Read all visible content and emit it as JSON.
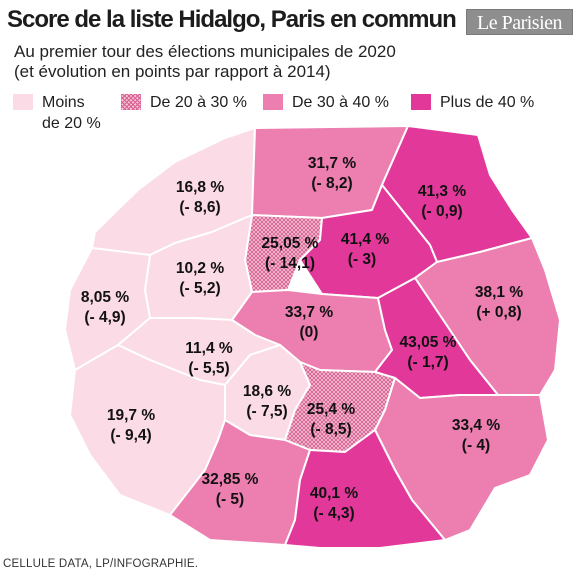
{
  "header": {
    "title": "Score de la liste Hidalgo, Paris en commun",
    "logo": "Le Parisien",
    "subtitle_line1": "Au premier tour des élections municipales de 2020",
    "subtitle_line2": "(et évolution en points par rapport à 2014)"
  },
  "legend": [
    {
      "label_line1": "Moins",
      "label_line2": "de 20 %",
      "color": "#fadbe6"
    },
    {
      "label_line1": "De 20 à 30 %",
      "label_line2": "",
      "color": "#f6c3d5"
    },
    {
      "label_line1": "De 30 à 40 %",
      "label_line2": "",
      "color": "#ec7eb0"
    },
    {
      "label_line1": "Plus de 40 %",
      "label_line2": "",
      "color": "#e1389a"
    }
  ],
  "districts": [
    {
      "score": "16,8 %",
      "change": "(- 8,6)",
      "class": "moins de 20 %"
    },
    {
      "score": "31,7 %",
      "change": "(- 8,2)",
      "class": "de 30 à 40 %"
    },
    {
      "score": "41,3 %",
      "change": "(- 0,9)",
      "class": "plus de 40 %"
    },
    {
      "score": "25,05 %",
      "change": "(- 14,1)",
      "class": "de 20 à 30 %"
    },
    {
      "score": "41,4 %",
      "change": "(- 3)",
      "class": "plus de 40 %"
    },
    {
      "score": "10,2 %",
      "change": "(- 5,2)",
      "class": "moins de 20 %"
    },
    {
      "score": "8,05 %",
      "change": "(- 4,9)",
      "class": "moins de 20 %"
    },
    {
      "score": "38,1 %",
      "change": "(+ 0,8)",
      "class": "de 30 à 40 %"
    },
    {
      "score": "33,7 %",
      "change": "(0)",
      "class": "de 30 à 40 %"
    },
    {
      "score": "43,05 %",
      "change": "(- 1,7)",
      "class": "plus de 40 %"
    },
    {
      "score": "11,4 %",
      "change": "(- 5,5)",
      "class": "moins de 20 %"
    },
    {
      "score": "18,6 %",
      "change": "(- 7,5)",
      "class": "moins de 20 %"
    },
    {
      "score": "25,4 %",
      "change": "(- 8,5)",
      "class": "de 20 à 30 %"
    },
    {
      "score": "19,7 %",
      "change": "(- 9,4)",
      "class": "moins de 20 %"
    },
    {
      "score": "33,4 %",
      "change": "(- 4)",
      "class": "de 30 à 40 %"
    },
    {
      "score": "32,85 %",
      "change": "(- 5)",
      "class": "de 30 à 40 %"
    },
    {
      "score": "40,1 %",
      "change": "(- 4,3)",
      "class": "plus de 40 %"
    }
  ],
  "footer": "CELLULE DATA, LP/INFOGRAPHIE."
}
